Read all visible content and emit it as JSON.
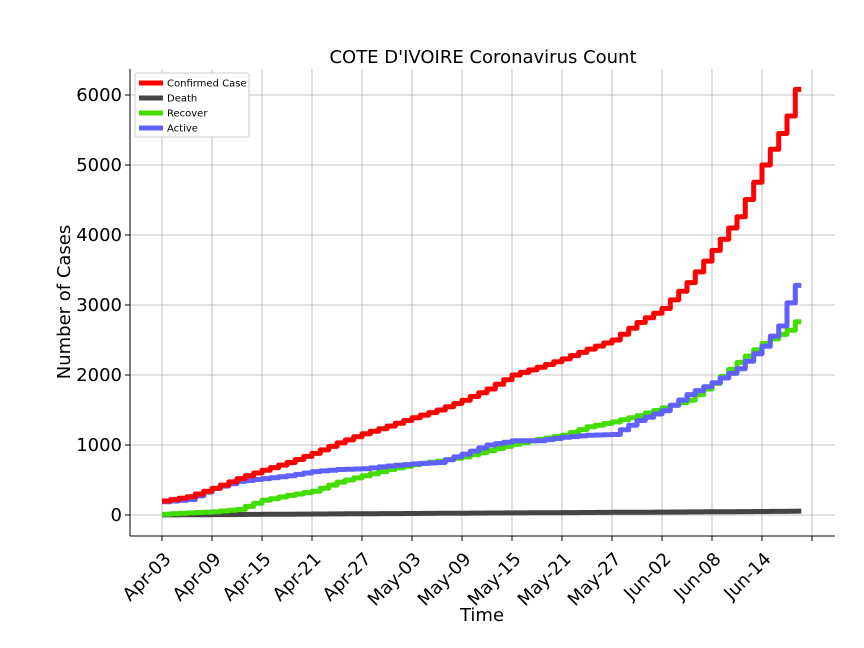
{
  "chart_data": {
    "type": "line",
    "title": "COTE D'IVOIRE Coronavirus Count",
    "xlabel": "Time",
    "ylabel": "Number of Cases",
    "x_tick_labels": [
      "Apr-03",
      "Apr-09",
      "Apr-15",
      "Apr-21",
      "Apr-27",
      "May-03",
      "May-09",
      "May-15",
      "May-21",
      "May-27",
      "Jun-02",
      "Jun-08",
      "Jun-14"
    ],
    "y_ticks": [
      0,
      1000,
      2000,
      3000,
      4000,
      5000,
      6000
    ],
    "ylim": [
      -300,
      6400
    ],
    "grid": true,
    "legend_position": "top-left",
    "step_style": "post",
    "x": [
      "Apr-03",
      "Apr-06",
      "Apr-09",
      "Apr-12",
      "Apr-15",
      "Apr-18",
      "Apr-21",
      "Apr-24",
      "Apr-27",
      "Apr-30",
      "May-03",
      "May-06",
      "May-09",
      "May-12",
      "May-15",
      "May-18",
      "May-21",
      "May-24",
      "May-27",
      "May-30",
      "Jun-02",
      "Jun-05",
      "Jun-08",
      "Jun-11",
      "Jun-14",
      "Jun-16",
      "Jun-17",
      "Jun-18"
    ],
    "series": [
      {
        "name": "Confirmed Case",
        "color": "#ff0000",
        "values": [
          200,
          260,
          380,
          520,
          640,
          750,
          880,
          1030,
          1160,
          1270,
          1390,
          1500,
          1640,
          1800,
          2000,
          2110,
          2230,
          2370,
          2500,
          2750,
          2950,
          3320,
          3780,
          4260,
          5000,
          5450,
          5700,
          6080
        ]
      },
      {
        "name": "Death",
        "color": "#444444",
        "values": [
          1,
          3,
          5,
          7,
          10,
          12,
          14,
          16,
          18,
          20,
          22,
          24,
          26,
          28,
          30,
          32,
          34,
          36,
          38,
          40,
          42,
          44,
          46,
          48,
          50,
          52,
          54,
          55
        ]
      },
      {
        "name": "Recover",
        "color": "#44dd00",
        "values": [
          10,
          30,
          45,
          80,
          210,
          280,
          340,
          470,
          560,
          650,
          720,
          770,
          830,
          920,
          1010,
          1080,
          1140,
          1260,
          1330,
          1420,
          1530,
          1640,
          1880,
          2180,
          2450,
          2580,
          2640,
          2760
        ]
      },
      {
        "name": "Active",
        "color": "#6060ff",
        "values": [
          190,
          220,
          380,
          480,
          520,
          560,
          620,
          650,
          660,
          700,
          730,
          750,
          870,
          1000,
          1060,
          1060,
          1110,
          1140,
          1150,
          1350,
          1490,
          1720,
          1890,
          2090,
          2410,
          2700,
          3030,
          3280
        ]
      }
    ]
  }
}
